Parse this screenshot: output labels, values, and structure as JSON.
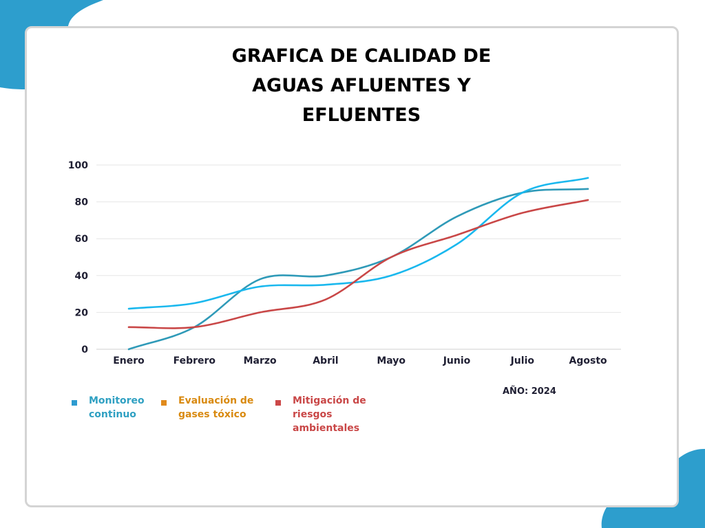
{
  "title_lines": [
    "GRAFICA DE CALIDAD DE",
    "AGUAS AFLUENTES Y",
    "EFLUENTES"
  ],
  "year_label": "AÑO: 2024",
  "colors": {
    "decor_blob": "#2d9ecd",
    "card_border": "#d4d4d4",
    "gridline": "#e6e6e6"
  },
  "legend": [
    {
      "label_lines": [
        "Monitoreo",
        "continuo"
      ],
      "color": "#2fa0c2",
      "marker_color": "#2d9bd0"
    },
    {
      "label_lines": [
        "Evaluación de",
        "gases tóxico"
      ],
      "color": "#d98a10",
      "marker_color": "#e08a1c"
    },
    {
      "label_lines": [
        "Mitigación de",
        "riesgos",
        "ambientales"
      ],
      "color": "#c94747",
      "marker_color": "#cc4848"
    }
  ],
  "chart_data": {
    "type": "line",
    "categories": [
      "Enero",
      "Febrero",
      "Marzo",
      "Abril",
      "Mayo",
      "Junio",
      "Julio",
      "Agosto"
    ],
    "ylim": [
      0,
      100
    ],
    "yticks": [
      0,
      20,
      40,
      60,
      80,
      100
    ],
    "grid": true,
    "series": [
      {
        "name": "Monitoreo continuo",
        "color": "#2f9ab8",
        "values": [
          0,
          12,
          38,
          40,
          50,
          72,
          85,
          87
        ]
      },
      {
        "name": "",
        "color": "#1ab8ee",
        "values": [
          22,
          25,
          34,
          35,
          40,
          57,
          85,
          93
        ]
      },
      {
        "name": "Mitigación de riesgos ambientales",
        "color": "#c94747",
        "values": [
          12,
          12,
          20,
          27,
          50,
          62,
          74,
          81
        ]
      }
    ]
  }
}
